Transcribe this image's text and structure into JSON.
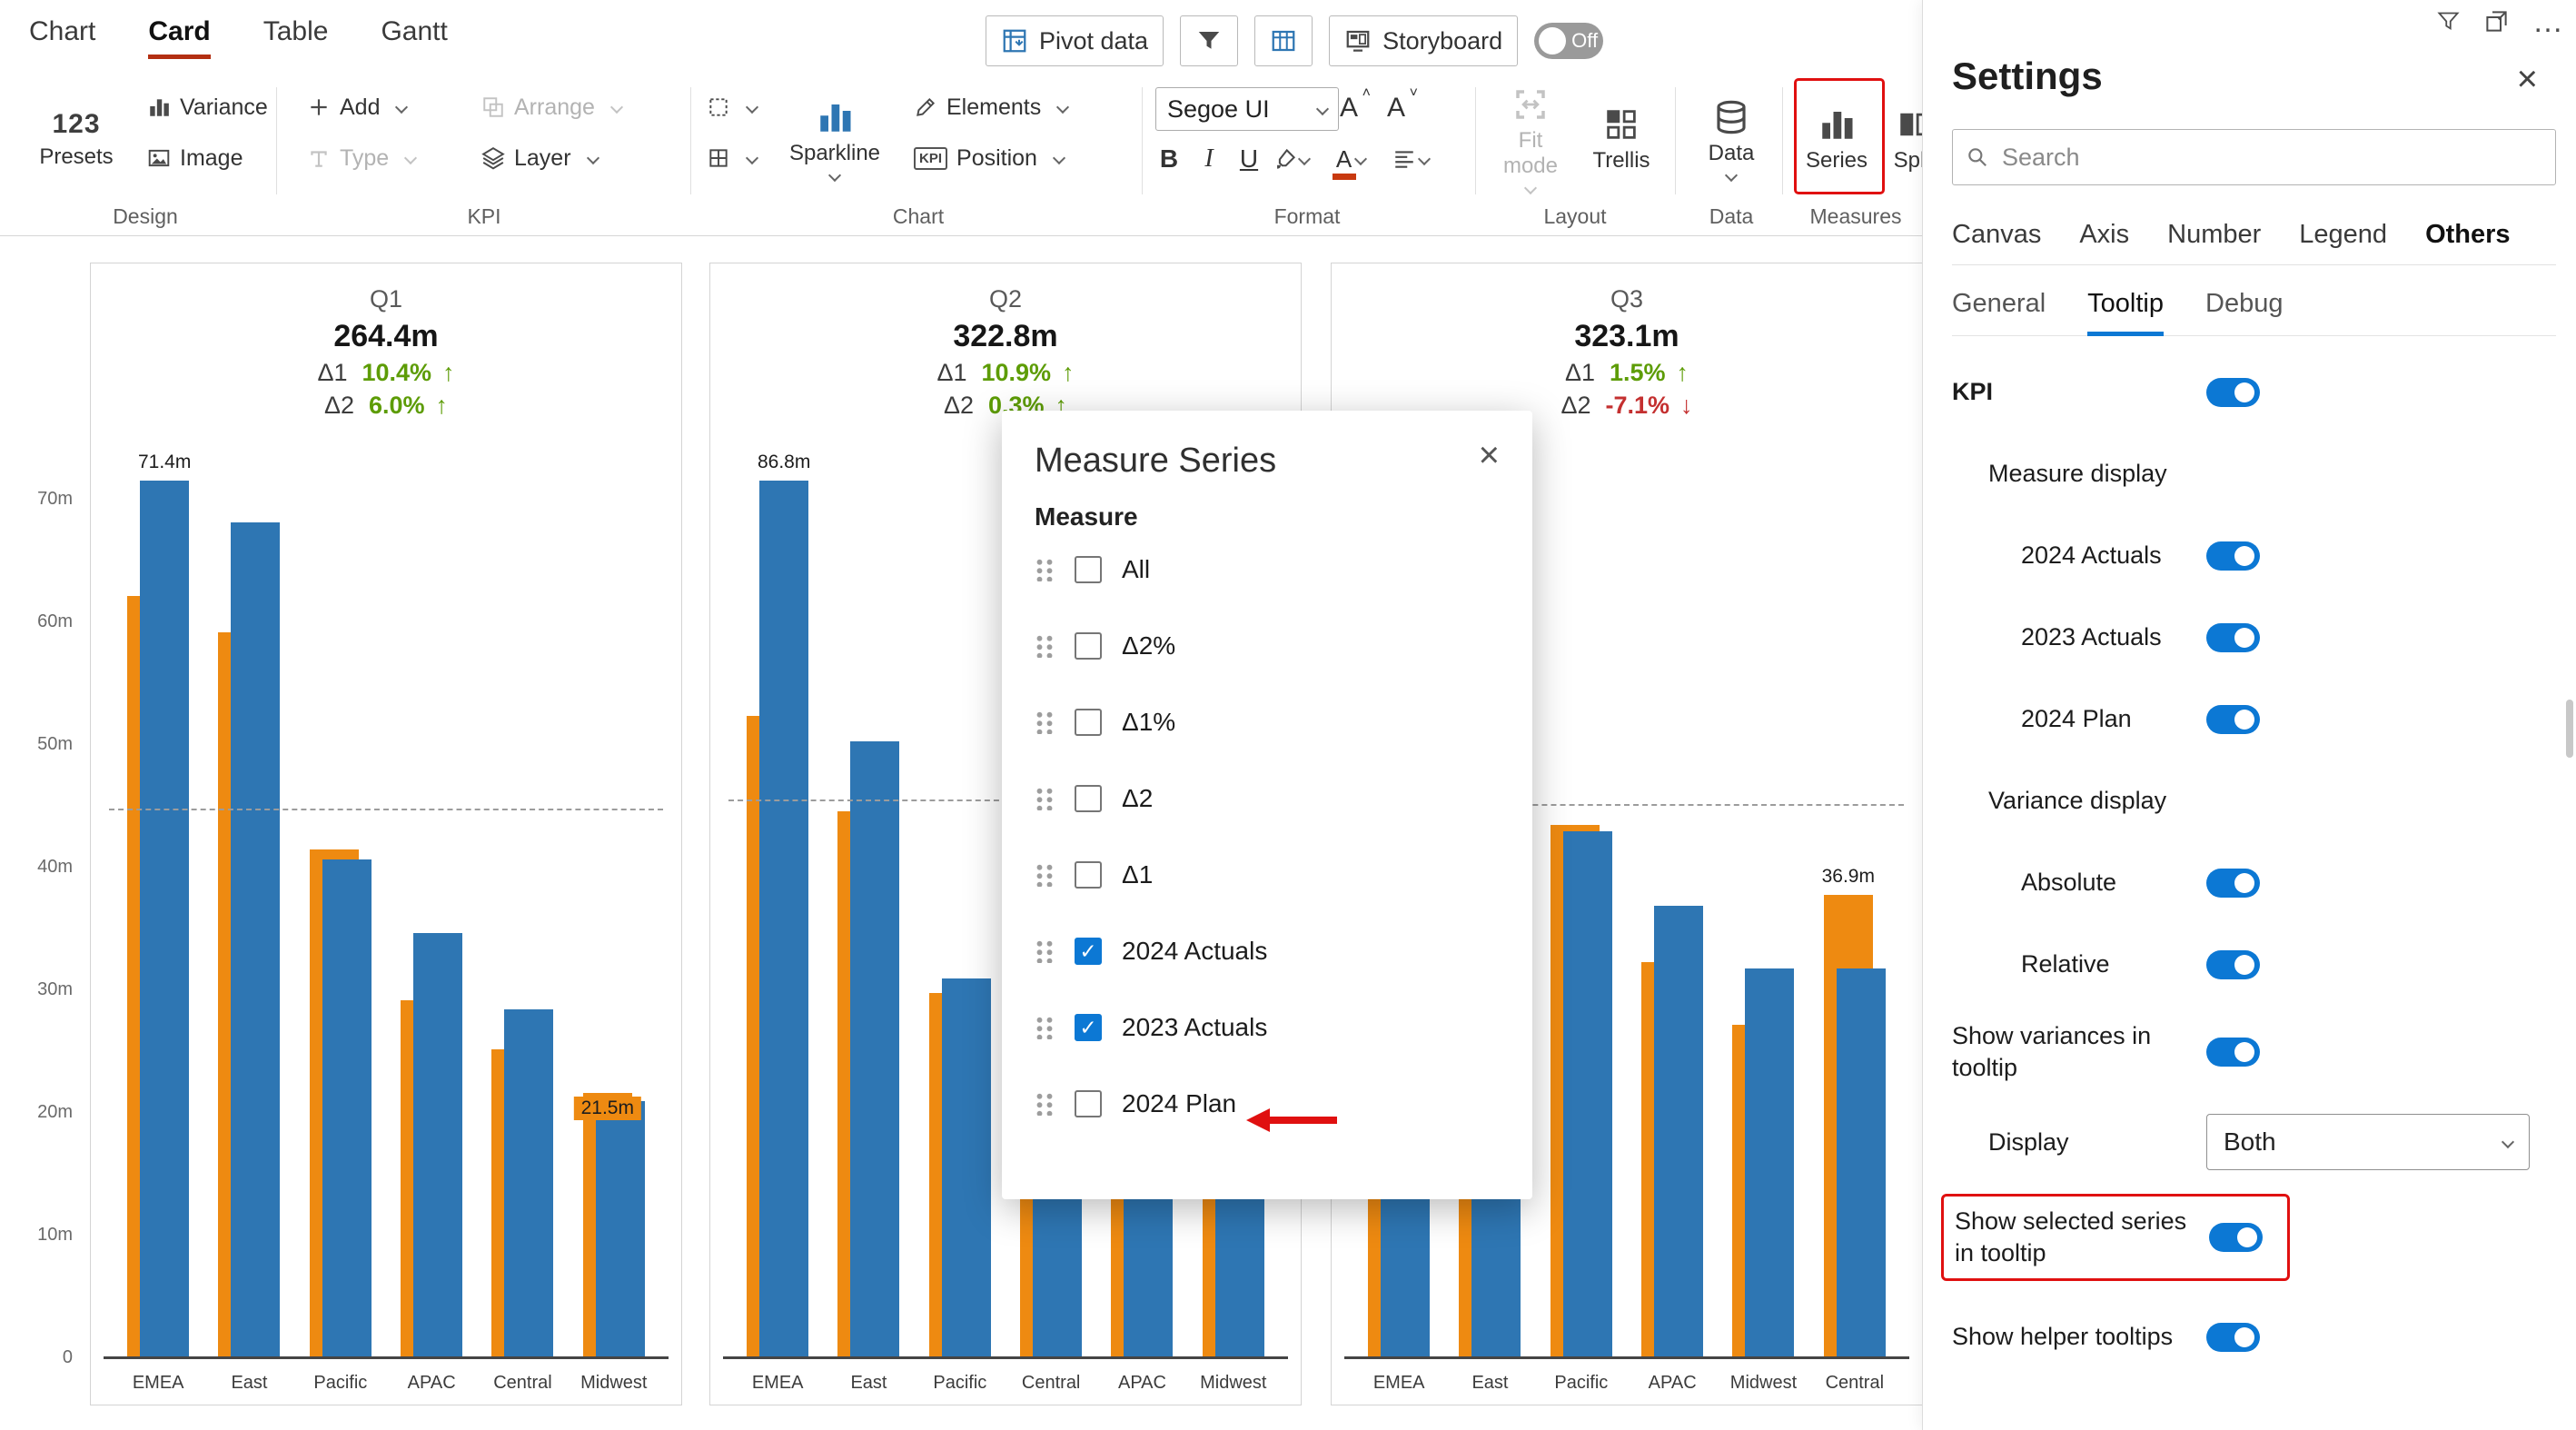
{
  "ribbon": {
    "tabs": [
      {
        "label": "Chart",
        "active": false
      },
      {
        "label": "Card",
        "active": true
      },
      {
        "label": "Table",
        "active": false
      },
      {
        "label": "Gantt",
        "active": false
      }
    ],
    "quick": {
      "pivot": "Pivot data",
      "storyboard": "Storyboard",
      "off": "Off"
    },
    "groups": {
      "design": {
        "label": "Design",
        "presets_icon": "123",
        "presets": "Presets",
        "variance": "Variance",
        "image": "Image"
      },
      "kpi": {
        "label": "KPI",
        "add": "Add",
        "type": "Type",
        "arrange": "Arrange",
        "layer": "Layer"
      },
      "chart": {
        "label": "Chart",
        "sparkline": "Sparkline",
        "elements": "Elements",
        "position": "Position",
        "kpi_badge": "KPI"
      },
      "format": {
        "label": "Format",
        "font_name": "Segoe UI",
        "bold": "B",
        "italic": "I",
        "underline": "U",
        "grow": "A",
        "shrink": "A"
      },
      "layout": {
        "label": "Layout",
        "fit_mode": "Fit mode",
        "trellis": "Trellis"
      },
      "data": {
        "label": "Data",
        "button": "Data"
      },
      "measures": {
        "label": "Measures",
        "series": "Series",
        "split": "Split"
      }
    }
  },
  "axis": {
    "ticks": [
      "0",
      "10m",
      "20m",
      "30m",
      "40m",
      "50m",
      "60m",
      "70m"
    ],
    "values": [
      0,
      10,
      20,
      30,
      40,
      50,
      60,
      70
    ]
  },
  "chart_data": [
    {
      "type": "bar",
      "title": "Q1",
      "total": "264.4m",
      "kpis": [
        {
          "label": "Δ1",
          "value": "10.4%",
          "arrow": "↑",
          "color": "#5d9c06"
        },
        {
          "label": "Δ2",
          "value": "6.0%",
          "arrow": "↑",
          "color": "#5d9c06"
        }
      ],
      "categories": [
        "EMEA",
        "East",
        "Pacific",
        "APAC",
        "Central",
        "Midwest"
      ],
      "series": [
        {
          "name": "2024 Actuals",
          "color": "#2e76b3",
          "values": [
            71.4,
            68.0,
            40.5,
            34.5,
            28.3,
            20.8
          ]
        },
        {
          "name": "2023 Actuals",
          "color": "#ee8a11",
          "values": [
            62.0,
            59.0,
            41.3,
            29.0,
            25.0,
            21.5
          ]
        }
      ],
      "bar_labels": [
        {
          "cat": 0,
          "series": 0,
          "text": "71.4m",
          "bg": "none"
        },
        {
          "cat": 5,
          "series": 1,
          "text": "21.5m",
          "bg": "orange"
        }
      ],
      "scale_max": 71.4,
      "ref_line": 44.5,
      "unit": "m",
      "ylim": [
        0,
        71.4
      ]
    },
    {
      "type": "bar",
      "title": "Q2",
      "total": "322.8m",
      "kpis": [
        {
          "label": "Δ1",
          "value": "10.9%",
          "arrow": "↑",
          "color": "#5d9c06"
        },
        {
          "label": "Δ2",
          "value": "0.3%",
          "arrow": "↑",
          "color": "#5d9c06"
        }
      ],
      "categories": [
        "EMEA",
        "East",
        "Pacific",
        "Central",
        "APAC",
        "Midwest"
      ],
      "series": [
        {
          "name": "2024 Actuals",
          "color": "#2e76b3",
          "values": [
            86.8,
            61.0,
            37.5,
            30.0,
            28.0,
            26.0
          ]
        },
        {
          "name": "2023 Actuals",
          "color": "#ee8a11",
          "values": [
            63.5,
            54.0,
            36.0,
            27.0,
            25.0,
            23.0
          ]
        }
      ],
      "bar_labels": [
        {
          "cat": 0,
          "series": 0,
          "text": "86.8m",
          "bg": "none"
        }
      ],
      "scale_max": 86.8,
      "ref_line": 55.0,
      "unit": "m",
      "ylim": [
        0,
        86.8
      ]
    },
    {
      "type": "bar",
      "title": "Q3",
      "total": "323.1m",
      "kpis": [
        {
          "label": "Δ1",
          "value": "1.5%",
          "arrow": "↑",
          "color": "#5d9c06"
        },
        {
          "label": "Δ2",
          "value": "-7.1%",
          "arrow": "↓",
          "color": "#c43030"
        }
      ],
      "categories": [
        "EMEA",
        "East",
        "Pacific",
        "APAC",
        "Midwest",
        "Central"
      ],
      "series": [
        {
          "name": "2024 Actuals",
          "color": "#2e76b3",
          "values": [
            70.0,
            60.0,
            42.0,
            36.0,
            31.0,
            31.0
          ]
        },
        {
          "name": "2023 Actuals",
          "color": "#ee8a11",
          "values": [
            61.0,
            52.0,
            42.5,
            31.5,
            26.5,
            36.9
          ]
        }
      ],
      "bar_labels": [
        {
          "cat": 5,
          "series": 1,
          "text": "36.9m",
          "bg": "none"
        }
      ],
      "scale_max": 70.0,
      "ref_line": 44.0,
      "unit": "m",
      "ylim": [
        0,
        70.0
      ]
    }
  ],
  "modal": {
    "title": "Measure Series",
    "close": "×",
    "check_icon": "✓",
    "section": "Measure",
    "items": [
      {
        "label": "All",
        "checked": false
      },
      {
        "label": "Δ2%",
        "checked": false
      },
      {
        "label": "Δ1%",
        "checked": false
      },
      {
        "label": "Δ2",
        "checked": false
      },
      {
        "label": "Δ1",
        "checked": false
      },
      {
        "label": "2024 Actuals",
        "checked": true
      },
      {
        "label": "2023 Actuals",
        "checked": true
      },
      {
        "label": "2024 Plan",
        "checked": false,
        "annotated": true
      }
    ]
  },
  "settings": {
    "title": "Settings",
    "close": "×",
    "more_icon": "…",
    "search_placeholder": "Search",
    "tabs": [
      {
        "label": "Canvas",
        "active": false
      },
      {
        "label": "Axis",
        "active": false
      },
      {
        "label": "Number",
        "active": false
      },
      {
        "label": "Legend",
        "active": false
      },
      {
        "label": "Others",
        "active": true
      }
    ],
    "subtabs": [
      {
        "label": "General",
        "active": false
      },
      {
        "label": "Tooltip",
        "active": true
      },
      {
        "label": "Debug",
        "active": false
      }
    ],
    "rows": [
      {
        "type": "toggle",
        "label": "KPI",
        "value": true,
        "bold": true,
        "indent": 0
      },
      {
        "type": "header",
        "label": "Measure display",
        "indent": 1
      },
      {
        "type": "toggle",
        "label": "2024 Actuals",
        "value": true,
        "indent": 2
      },
      {
        "type": "toggle",
        "label": "2023 Actuals",
        "value": true,
        "indent": 2
      },
      {
        "type": "toggle",
        "label": "2024 Plan",
        "value": true,
        "indent": 2
      },
      {
        "type": "header",
        "label": "Variance display",
        "indent": 1
      },
      {
        "type": "toggle",
        "label": "Absolute",
        "value": true,
        "indent": 2
      },
      {
        "type": "toggle",
        "label": "Relative",
        "value": true,
        "indent": 2
      },
      {
        "type": "toggle",
        "label": "Show variances in tooltip",
        "value": true,
        "indent": 0
      },
      {
        "type": "dropdown",
        "label": "Display",
        "value": "Both",
        "indent": 1
      },
      {
        "type": "toggle",
        "label": "Show selected series in tooltip",
        "value": true,
        "indent": 0,
        "highlight": true
      },
      {
        "type": "toggle",
        "label": "Show helper tooltips",
        "value": true,
        "indent": 0
      }
    ]
  },
  "colors": {
    "actuals_blue": "#2e76b3",
    "prior_orange": "#ee8a11",
    "toggle_blue": "#0c78d4",
    "annotation_red": "#e01010",
    "positive_green": "#5d9c06",
    "negative_red": "#c43030",
    "active_tab_underline": "#b32f12"
  }
}
